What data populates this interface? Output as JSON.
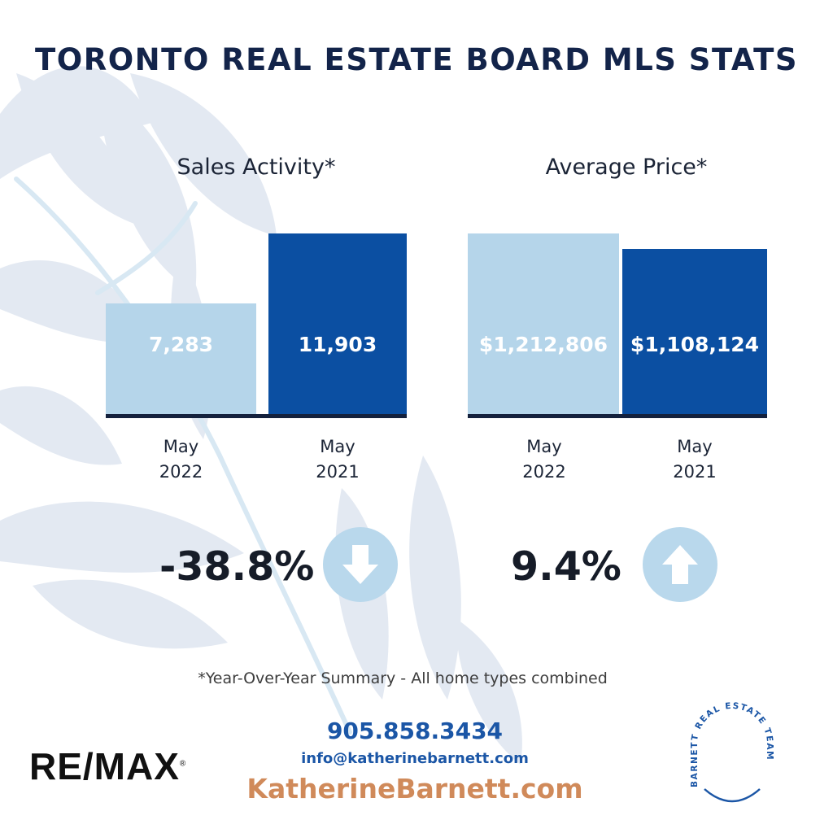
{
  "title": "TORONTO REAL ESTATE BOARD MLS STATS",
  "chart_data": [
    {
      "type": "bar",
      "title": "Sales Activity*",
      "categories": [
        [
          "May",
          "2022"
        ],
        [
          "May",
          "2021"
        ]
      ],
      "values": [
        7283,
        11903
      ],
      "value_labels": [
        "7,283",
        "11,903"
      ],
      "ylim": [
        0,
        12300
      ],
      "colors": [
        "#b5d5ea",
        "#0b4fa2"
      ]
    },
    {
      "type": "bar",
      "title": "Average Price*",
      "categories": [
        [
          "May",
          "2022"
        ],
        [
          "May",
          "2021"
        ]
      ],
      "values": [
        1212806,
        1108124
      ],
      "value_labels": [
        "$1,212,806",
        "$1,108,124"
      ],
      "ylim": [
        0,
        1250000
      ],
      "colors": [
        "#b5d5ea",
        "#0b4fa2"
      ]
    }
  ],
  "changes": [
    {
      "value": "-38.8%",
      "direction": "down",
      "icon": "arrow-down-icon"
    },
    {
      "value": "9.4%",
      "direction": "up",
      "icon": "arrow-up-icon"
    }
  ],
  "footnote": "*Year-Over-Year Summary - All home types combined",
  "contact": {
    "phone": "905.858.3434",
    "email": "info@katherinebarnett.com",
    "website": "KatherineBarnett.com"
  },
  "logo": {
    "text": "RE/MAX",
    "reg": "®"
  },
  "seal": {
    "text": "BARNETT REAL ESTATE TEAM"
  },
  "colors": {
    "title": "#13244a",
    "accent": "#1b56a6",
    "website": "#d08a5a",
    "light_bar": "#b5d5ea",
    "dark_bar": "#0b4fa2",
    "circle": "#b9d8ec"
  }
}
